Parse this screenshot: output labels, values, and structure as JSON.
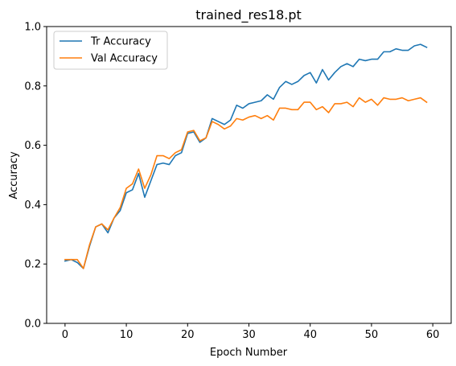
{
  "chart_data": {
    "type": "line",
    "title": "trained_res18.pt",
    "xlabel": "Epoch Number",
    "ylabel": "Accuracy",
    "xlim": [
      -3,
      63
    ],
    "ylim": [
      0.0,
      1.0
    ],
    "xticks": [
      0,
      10,
      20,
      30,
      40,
      50,
      60
    ],
    "yticks": [
      0.0,
      0.2,
      0.4,
      0.6,
      0.8,
      1.0
    ],
    "grid": false,
    "legend_position": "upper-left",
    "x": [
      0,
      1,
      2,
      3,
      4,
      5,
      6,
      7,
      8,
      9,
      10,
      11,
      12,
      13,
      14,
      15,
      16,
      17,
      18,
      19,
      20,
      21,
      22,
      23,
      24,
      25,
      26,
      27,
      28,
      29,
      30,
      31,
      32,
      33,
      34,
      35,
      36,
      37,
      38,
      39,
      40,
      41,
      42,
      43,
      44,
      45,
      46,
      47,
      48,
      49,
      50,
      51,
      52,
      53,
      54,
      55,
      56,
      57,
      58,
      59
    ],
    "series": [
      {
        "name": "Tr Accuracy",
        "color": "#1f77b4",
        "values": [
          0.21,
          0.215,
          0.205,
          0.185,
          0.26,
          0.325,
          0.335,
          0.305,
          0.355,
          0.38,
          0.44,
          0.45,
          0.505,
          0.425,
          0.48,
          0.535,
          0.54,
          0.535,
          0.565,
          0.575,
          0.64,
          0.645,
          0.61,
          0.625,
          0.69,
          0.68,
          0.67,
          0.685,
          0.735,
          0.725,
          0.74,
          0.745,
          0.75,
          0.77,
          0.755,
          0.795,
          0.815,
          0.805,
          0.815,
          0.835,
          0.845,
          0.81,
          0.855,
          0.82,
          0.845,
          0.865,
          0.875,
          0.865,
          0.89,
          0.885,
          0.89,
          0.89,
          0.915,
          0.915,
          0.925,
          0.92,
          0.92,
          0.935,
          0.94,
          0.93
        ]
      },
      {
        "name": "Val Accuracy",
        "color": "#ff7f0e",
        "values": [
          0.215,
          0.215,
          0.215,
          0.185,
          0.265,
          0.325,
          0.335,
          0.315,
          0.355,
          0.39,
          0.455,
          0.47,
          0.52,
          0.455,
          0.5,
          0.565,
          0.565,
          0.555,
          0.575,
          0.585,
          0.645,
          0.65,
          0.615,
          0.625,
          0.68,
          0.67,
          0.655,
          0.665,
          0.69,
          0.685,
          0.695,
          0.7,
          0.69,
          0.7,
          0.685,
          0.725,
          0.725,
          0.72,
          0.72,
          0.745,
          0.745,
          0.72,
          0.73,
          0.71,
          0.74,
          0.74,
          0.745,
          0.73,
          0.76,
          0.745,
          0.755,
          0.735,
          0.76,
          0.755,
          0.755,
          0.76,
          0.75,
          0.755,
          0.76,
          0.745
        ]
      }
    ]
  }
}
